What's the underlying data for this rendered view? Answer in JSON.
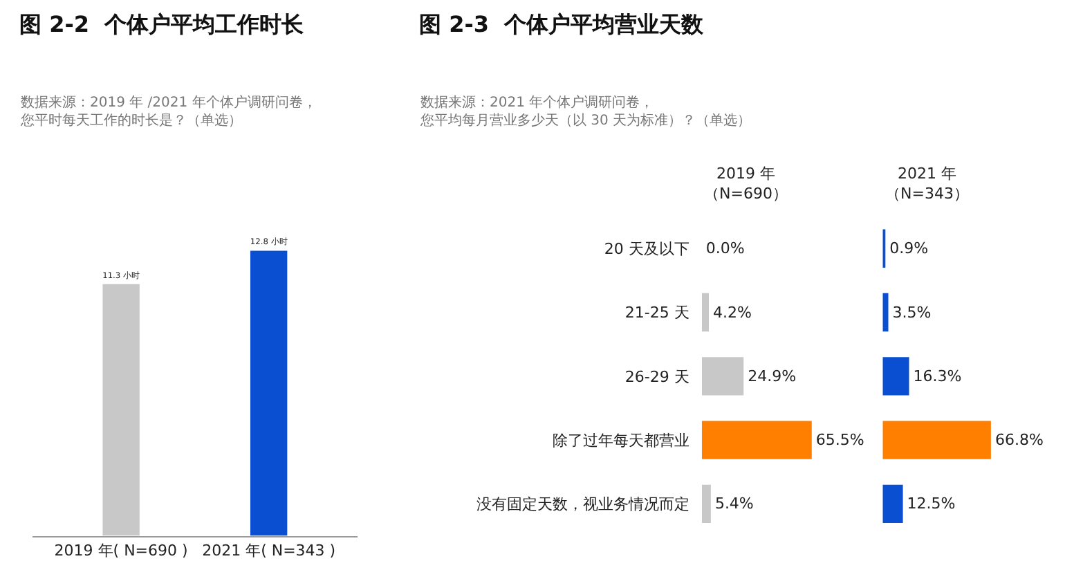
{
  "chart_data": [
    {
      "type": "bar",
      "title": "图 2-2  个体户平均工作时长",
      "subtitle": "数据来源：2019 年 /2021 年个体户调研问卷，您平时每天工作的时长是？（单选）",
      "categories": [
        "2019 年( N=690 )",
        "2021 年( N=343 )"
      ],
      "values": [
        11.3,
        12.8
      ],
      "colors": [
        "#c8c8c8",
        "#0a4fd1"
      ],
      "value_labels": [
        "11.3 小时",
        "12.8 小时"
      ]
    },
    {
      "type": "bar",
      "orientation": "horizontal",
      "title": "图 2-3  个体户平均营业天数",
      "subtitle": "数据来源：2021 年个体户调研问卷，您平均每月营业多少天（以 30 天为标准）？（单选）",
      "annotations": [
        "2019 年（N=690）"
      ],
      "categories": [
        "20 天及以下",
        "21-25 天",
        "26-29 天",
        "除了过年每天都营业",
        "没有固定天数，视业务情况而定"
      ],
      "values": [
        0.0,
        4.2,
        24.9,
        65.5,
        5.4
      ],
      "colors": [
        "#c8c8c8",
        "#c8c8c8",
        "#c8c8c8",
        "#ff8000",
        "#c8c8c8"
      ],
      "value_labels": [
        "0.0%",
        "4.2%",
        "24.9%",
        "65.5%",
        "5.4%"
      ],
      "tick_labels": "y"
    },
    {
      "type": "bar",
      "orientation": "horizontal",
      "annotations": [
        "2021 年（N=343）"
      ],
      "categories": [
        null,
        null,
        null,
        null,
        null
      ],
      "values": [
        0.9,
        3.5,
        16.3,
        66.8,
        12.5
      ],
      "colors": [
        "#0a4fd1",
        "#0a4fd1",
        "#0a4fd1",
        "#ff8000",
        "#0a4fd1"
      ],
      "value_labels": [
        "0.9%",
        "3.5%",
        "16.3%",
        "66.8%",
        "12.5%"
      ],
      "tick_labels": false
    }
  ]
}
